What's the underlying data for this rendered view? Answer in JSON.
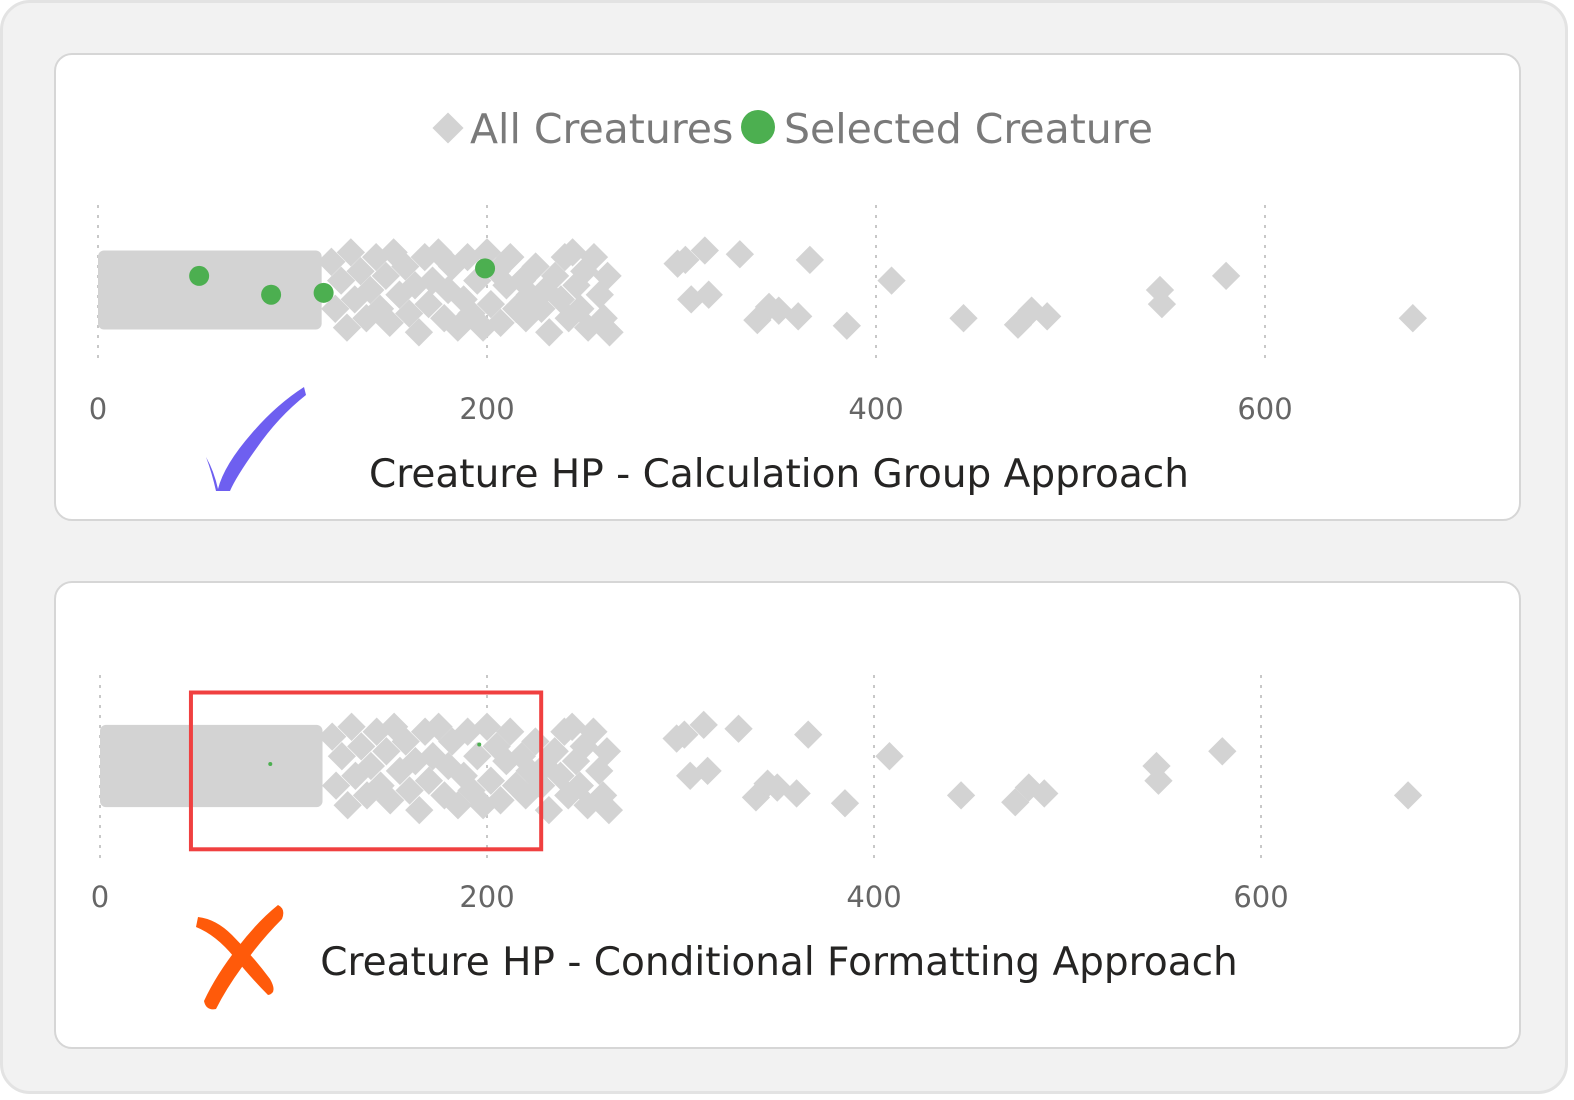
{
  "chart_data": [
    {
      "type": "scatter",
      "title": "Creature HP - Calculation Group Approach",
      "legend": {
        "placement": "top-center",
        "entries": [
          {
            "label": "All Creatures",
            "marker": "diamond",
            "color": "#d3d3d3"
          },
          {
            "label": "Selected Creature",
            "marker": "circle",
            "color": "#4caf50"
          }
        ]
      },
      "xaxis": {
        "ticks": [
          0,
          200,
          400,
          600
        ],
        "range": [
          0,
          680
        ],
        "grid": "dotted-vertical"
      },
      "yaxis": {
        "visible": false,
        "range": [
          0,
          1
        ]
      },
      "dense_band": {
        "x_range": [
          0,
          115
        ],
        "y_range": [
          0.08,
          0.92
        ]
      },
      "series": [
        {
          "name": "All Creatures",
          "marker": "diamond",
          "color": "#d3d3d3",
          "points": [
            [
              120,
              0.8
            ],
            [
              122,
              0.3
            ],
            [
              125,
              0.6
            ],
            [
              128,
              0.1
            ],
            [
              130,
              0.9
            ],
            [
              132,
              0.4
            ],
            [
              135,
              0.7
            ],
            [
              138,
              0.2
            ],
            [
              140,
              0.5
            ],
            [
              143,
              0.85
            ],
            [
              145,
              0.3
            ],
            [
              148,
              0.65
            ],
            [
              150,
              0.15
            ],
            [
              152,
              0.9
            ],
            [
              155,
              0.45
            ],
            [
              158,
              0.75
            ],
            [
              160,
              0.25
            ],
            [
              163,
              0.55
            ],
            [
              165,
              0.05
            ],
            [
              168,
              0.85
            ],
            [
              170,
              0.35
            ],
            [
              172,
              0.6
            ],
            [
              175,
              0.9
            ],
            [
              178,
              0.2
            ],
            [
              180,
              0.5
            ],
            [
              182,
              0.75
            ],
            [
              185,
              0.1
            ],
            [
              188,
              0.4
            ],
            [
              190,
              0.85
            ],
            [
              192,
              0.25
            ],
            [
              195,
              0.6
            ],
            [
              198,
              0.1
            ],
            [
              200,
              0.9
            ],
            [
              202,
              0.35
            ],
            [
              205,
              0.7
            ],
            [
              207,
              0.15
            ],
            [
              210,
              0.55
            ],
            [
              212,
              0.85
            ],
            [
              215,
              0.3
            ],
            [
              218,
              0.6
            ],
            [
              220,
              0.2
            ],
            [
              222,
              0.45
            ],
            [
              225,
              0.75
            ],
            [
              228,
              0.3
            ],
            [
              230,
              0.5
            ],
            [
              232,
              0.05
            ],
            [
              235,
              0.65
            ],
            [
              238,
              0.4
            ],
            [
              240,
              0.85
            ],
            [
              242,
              0.2
            ],
            [
              244,
              0.9
            ],
            [
              246,
              0.55
            ],
            [
              248,
              0.3
            ],
            [
              250,
              0.7
            ],
            [
              252,
              0.1
            ],
            [
              255,
              0.85
            ],
            [
              258,
              0.45
            ],
            [
              260,
              0.2
            ],
            [
              262,
              0.65
            ],
            [
              263,
              0.05
            ],
            [
              298,
              0.78
            ],
            [
              302,
              0.82
            ],
            [
              305,
              0.4
            ],
            [
              312,
              0.92
            ],
            [
              314,
              0.45
            ],
            [
              330,
              0.88
            ],
            [
              339,
              0.18
            ],
            [
              345,
              0.32
            ],
            [
              350,
              0.28
            ],
            [
              360,
              0.22
            ],
            [
              366,
              0.82
            ],
            [
              385,
              0.12
            ],
            [
              408,
              0.6
            ],
            [
              445,
              0.2
            ],
            [
              473,
              0.13
            ],
            [
              480,
              0.28
            ],
            [
              488,
              0.22
            ],
            [
              546,
              0.5
            ],
            [
              547,
              0.35
            ],
            [
              580,
              0.65
            ],
            [
              676,
              0.2
            ]
          ]
        },
        {
          "name": "Selected Creature",
          "marker": "circle",
          "color": "#4caf50",
          "points": [
            [
              52,
              0.65
            ],
            [
              89,
              0.45
            ],
            [
              116,
              0.47
            ],
            [
              199,
              0.73
            ]
          ]
        }
      ]
    },
    {
      "type": "scatter",
      "title": "Creature HP - Conditional Formatting Approach",
      "legend": null,
      "xaxis": {
        "ticks": [
          0,
          200,
          400,
          600
        ],
        "range": [
          0,
          680
        ],
        "grid": "dotted-vertical"
      },
      "yaxis": {
        "visible": false,
        "range": [
          0,
          1
        ]
      },
      "dense_band": {
        "x_range": [
          0,
          115
        ],
        "y_range": [
          0.08,
          0.92
        ]
      },
      "series": [
        {
          "name": "All Creatures",
          "marker": "diamond",
          "color": "#d3d3d3",
          "points": [
            [
              120,
              0.8
            ],
            [
              122,
              0.3
            ],
            [
              125,
              0.6
            ],
            [
              128,
              0.1
            ],
            [
              130,
              0.9
            ],
            [
              132,
              0.4
            ],
            [
              135,
              0.7
            ],
            [
              138,
              0.2
            ],
            [
              140,
              0.5
            ],
            [
              143,
              0.85
            ],
            [
              145,
              0.3
            ],
            [
              148,
              0.65
            ],
            [
              150,
              0.15
            ],
            [
              152,
              0.9
            ],
            [
              155,
              0.45
            ],
            [
              158,
              0.75
            ],
            [
              160,
              0.25
            ],
            [
              163,
              0.55
            ],
            [
              165,
              0.05
            ],
            [
              168,
              0.85
            ],
            [
              170,
              0.35
            ],
            [
              172,
              0.6
            ],
            [
              175,
              0.9
            ],
            [
              178,
              0.2
            ],
            [
              180,
              0.5
            ],
            [
              182,
              0.75
            ],
            [
              185,
              0.1
            ],
            [
              188,
              0.4
            ],
            [
              190,
              0.85
            ],
            [
              192,
              0.25
            ],
            [
              195,
              0.6
            ],
            [
              198,
              0.1
            ],
            [
              200,
              0.9
            ],
            [
              202,
              0.35
            ],
            [
              205,
              0.7
            ],
            [
              207,
              0.15
            ],
            [
              210,
              0.55
            ],
            [
              212,
              0.85
            ],
            [
              215,
              0.3
            ],
            [
              218,
              0.6
            ],
            [
              220,
              0.2
            ],
            [
              222,
              0.45
            ],
            [
              225,
              0.75
            ],
            [
              228,
              0.3
            ],
            [
              230,
              0.5
            ],
            [
              232,
              0.05
            ],
            [
              235,
              0.65
            ],
            [
              238,
              0.4
            ],
            [
              240,
              0.85
            ],
            [
              242,
              0.2
            ],
            [
              244,
              0.9
            ],
            [
              246,
              0.55
            ],
            [
              248,
              0.3
            ],
            [
              250,
              0.7
            ],
            [
              252,
              0.1
            ],
            [
              255,
              0.85
            ],
            [
              258,
              0.45
            ],
            [
              260,
              0.2
            ],
            [
              262,
              0.65
            ],
            [
              263,
              0.05
            ],
            [
              298,
              0.78
            ],
            [
              302,
              0.82
            ],
            [
              305,
              0.4
            ],
            [
              312,
              0.92
            ],
            [
              314,
              0.45
            ],
            [
              330,
              0.88
            ],
            [
              339,
              0.18
            ],
            [
              345,
              0.32
            ],
            [
              350,
              0.28
            ],
            [
              360,
              0.22
            ],
            [
              366,
              0.82
            ],
            [
              385,
              0.12
            ],
            [
              408,
              0.6
            ],
            [
              445,
              0.2
            ],
            [
              473,
              0.13
            ],
            [
              480,
              0.28
            ],
            [
              488,
              0.22
            ],
            [
              546,
              0.5
            ],
            [
              547,
              0.35
            ],
            [
              580,
              0.65
            ],
            [
              676,
              0.2
            ]
          ]
        },
        {
          "name": "Selected Creature",
          "marker": "circle",
          "color": "#4caf50",
          "points": [
            [
              88,
              0.52
            ],
            [
              196,
              0.72
            ]
          ]
        }
      ],
      "highlight_box": {
        "x_range": [
          47,
          228
        ],
        "y_range": [
          -0.35,
          1.25
        ],
        "color": "#f04040"
      }
    }
  ],
  "annotations": {
    "check_mark_color": "#6e5ff0",
    "cross_mark_color": "#ff5a0a"
  }
}
